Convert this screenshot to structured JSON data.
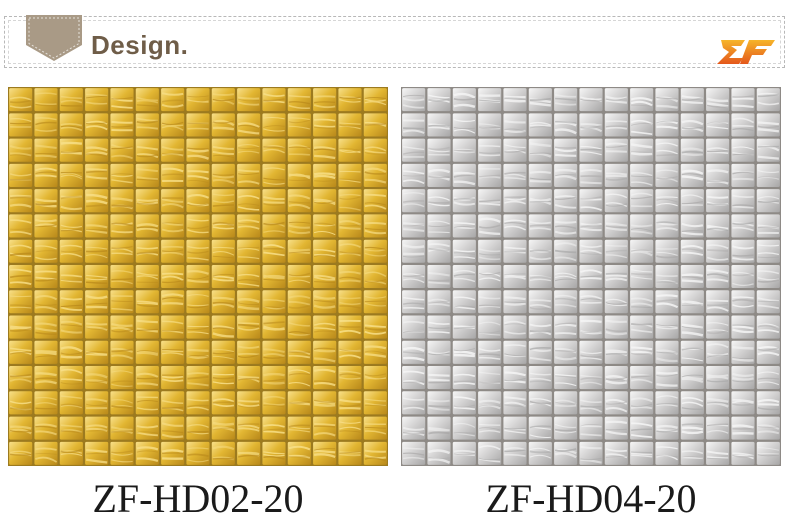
{
  "header": {
    "title": "Design."
  },
  "logo": {
    "name": "zf-logo-icon",
    "colors": [
      "#f2a11c",
      "#e4571b"
    ]
  },
  "products": [
    {
      "code": "ZF-HD02-20",
      "finish": "gold",
      "colors": {
        "grout": "#9c7a1f",
        "base": "#e2b632",
        "light": "#f8e08a",
        "dark": "#b8881a"
      }
    },
    {
      "code": "ZF-HD04-20",
      "finish": "silver",
      "colors": {
        "grout": "#8e8a86",
        "base": "#d3d2d2",
        "light": "#f6f6f6",
        "dark": "#a7a6a6"
      }
    }
  ],
  "colors": {
    "header_text": "#6f5d48",
    "badge": "#a99a86"
  }
}
